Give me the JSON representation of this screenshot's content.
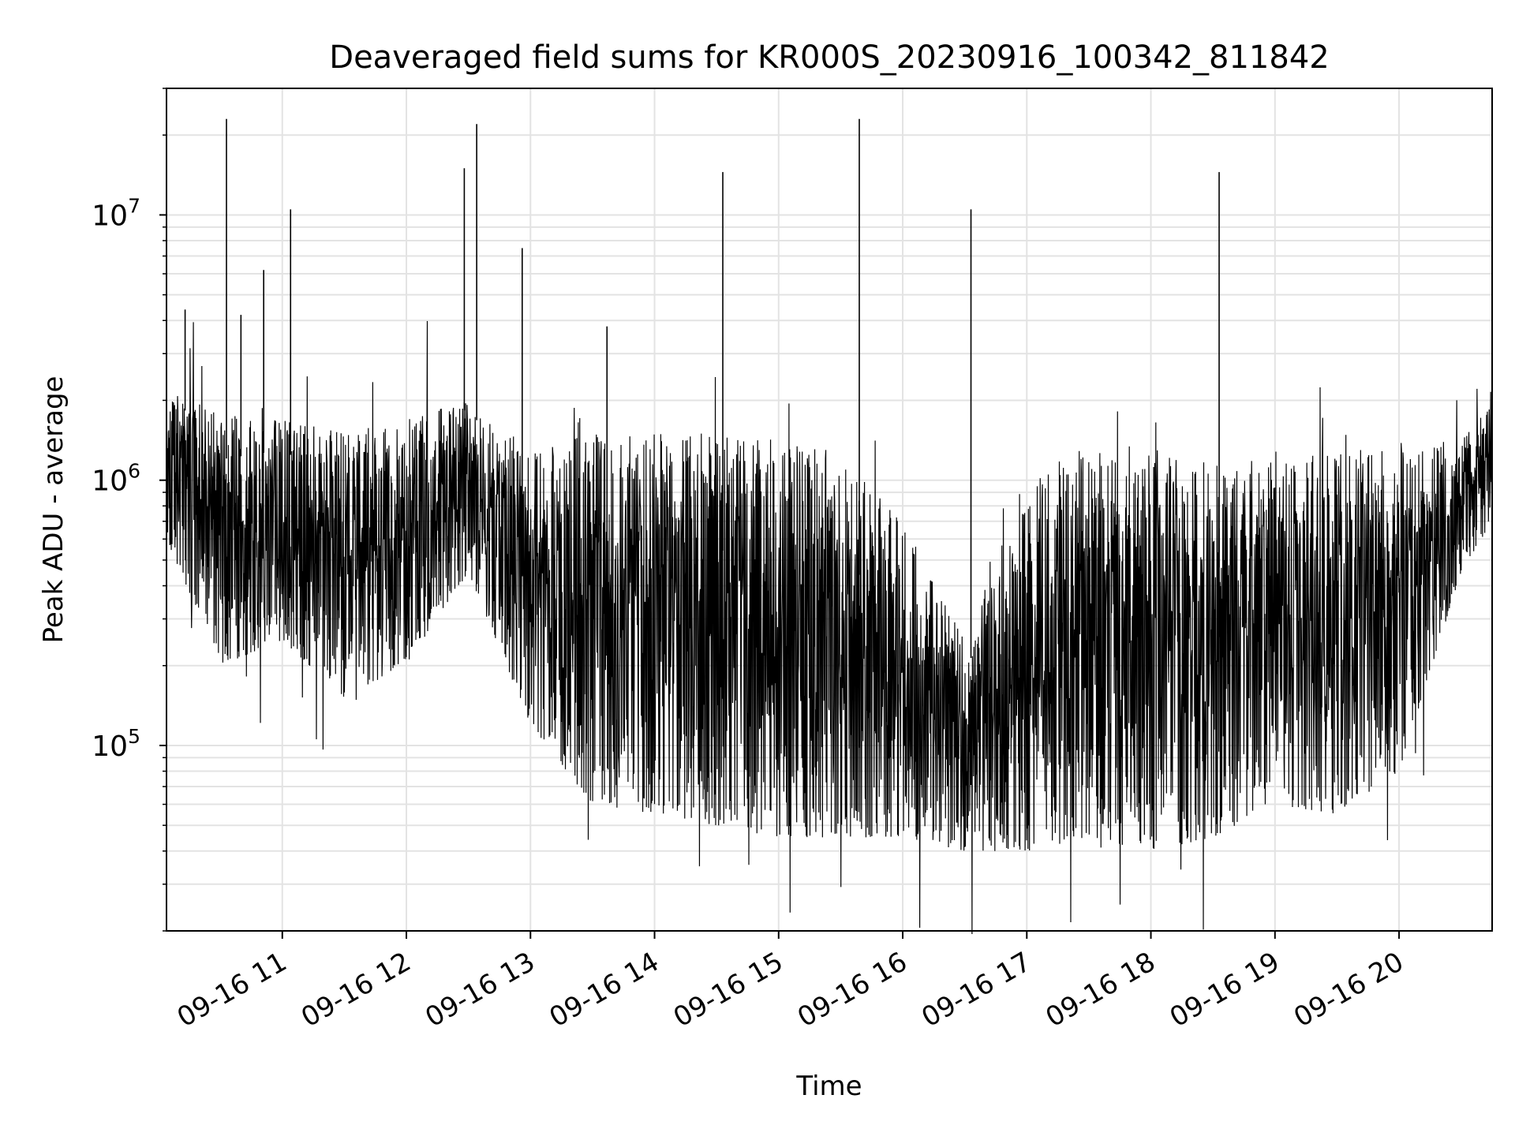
{
  "chart_data": {
    "type": "line",
    "title": "Deaveraged field sums for KR000S_20230916_100342_811842",
    "xlabel": "Time",
    "ylabel": "Peak ADU - average",
    "yscale": "log",
    "ylim": [
      20000,
      30000000
    ],
    "xlim": [
      "2023-09-16 10:04",
      "2023-09-16 20:45"
    ],
    "grid": true,
    "line_color": "#000000",
    "x_ticks": [
      {
        "value": "2023-09-16 11:00",
        "label": "09-16 11"
      },
      {
        "value": "2023-09-16 12:00",
        "label": "09-16 12"
      },
      {
        "value": "2023-09-16 13:00",
        "label": "09-16 13"
      },
      {
        "value": "2023-09-16 14:00",
        "label": "09-16 14"
      },
      {
        "value": "2023-09-16 15:00",
        "label": "09-16 15"
      },
      {
        "value": "2023-09-16 16:00",
        "label": "09-16 16"
      },
      {
        "value": "2023-09-16 17:00",
        "label": "09-16 17"
      },
      {
        "value": "2023-09-16 18:00",
        "label": "09-16 18"
      },
      {
        "value": "2023-09-16 19:00",
        "label": "09-16 19"
      },
      {
        "value": "2023-09-16 20:00",
        "label": "09-16 20"
      }
    ],
    "y_ticks": [
      {
        "value": 100000,
        "label_base": "10",
        "label_exp": "5"
      },
      {
        "value": 1000000,
        "label_base": "10",
        "label_exp": "6"
      },
      {
        "value": 10000000,
        "label_base": "10",
        "label_exp": "7"
      }
    ],
    "series": [
      {
        "values": [
          {
            "x": "2023-09-16 10:04",
            "upper": 2200000,
            "lower": 600000
          },
          {
            "x": "2023-09-16 10:30",
            "upper": 1800000,
            "lower": 200000
          },
          {
            "x": "2023-09-16 11:00",
            "upper": 1700000,
            "lower": 250000
          },
          {
            "x": "2023-09-16 11:30",
            "upper": 1500000,
            "lower": 150000
          },
          {
            "x": "2023-09-16 12:00",
            "upper": 1700000,
            "lower": 200000
          },
          {
            "x": "2023-09-16 12:30",
            "upper": 2000000,
            "lower": 450000
          },
          {
            "x": "2023-09-16 13:00",
            "upper": 1300000,
            "lower": 120000
          },
          {
            "x": "2023-09-16 13:30",
            "upper": 1500000,
            "lower": 60000
          },
          {
            "x": "2023-09-16 14:00",
            "upper": 1500000,
            "lower": 55000
          },
          {
            "x": "2023-09-16 14:30",
            "upper": 1500000,
            "lower": 50000
          },
          {
            "x": "2023-09-16 15:00",
            "upper": 1450000,
            "lower": 45000
          },
          {
            "x": "2023-09-16 15:30",
            "upper": 1300000,
            "lower": 45000
          },
          {
            "x": "2023-09-16 16:00",
            "upper": 700000,
            "lower": 45000
          },
          {
            "x": "2023-09-16 16:30",
            "upper": 250000,
            "lower": 40000
          },
          {
            "x": "2023-09-16 17:00",
            "upper": 1000000,
            "lower": 40000
          },
          {
            "x": "2023-09-16 17:30",
            "upper": 1400000,
            "lower": 45000
          },
          {
            "x": "2023-09-16 18:00",
            "upper": 1400000,
            "lower": 40000
          },
          {
            "x": "2023-09-16 18:30",
            "upper": 1200000,
            "lower": 45000
          },
          {
            "x": "2023-09-16 19:00",
            "upper": 1200000,
            "lower": 60000
          },
          {
            "x": "2023-09-16 19:30",
            "upper": 1300000,
            "lower": 55000
          },
          {
            "x": "2023-09-16 20:00",
            "upper": 1400000,
            "lower": 80000
          },
          {
            "x": "2023-09-16 20:30",
            "upper": 1400000,
            "lower": 450000
          },
          {
            "x": "2023-09-16 20:45",
            "upper": 2000000,
            "lower": 700000
          }
        ],
        "spikes": [
          {
            "x": "2023-09-16 10:13",
            "y": 4400000
          },
          {
            "x": "2023-09-16 10:33",
            "y": 23000000
          },
          {
            "x": "2023-09-16 10:40",
            "y": 4200000
          },
          {
            "x": "2023-09-16 10:51",
            "y": 6200000
          },
          {
            "x": "2023-09-16 11:04",
            "y": 10500000
          },
          {
            "x": "2023-09-16 12:28",
            "y": 15000000
          },
          {
            "x": "2023-09-16 12:34",
            "y": 22000000
          },
          {
            "x": "2023-09-16 12:56",
            "y": 7500000
          },
          {
            "x": "2023-09-16 13:37",
            "y": 3800000
          },
          {
            "x": "2023-09-16 14:33",
            "y": 14500000
          },
          {
            "x": "2023-09-16 15:39",
            "y": 23000000
          },
          {
            "x": "2023-09-16 16:33",
            "y": 10500000
          },
          {
            "x": "2023-09-16 18:33",
            "y": 14500000
          }
        ]
      }
    ]
  }
}
